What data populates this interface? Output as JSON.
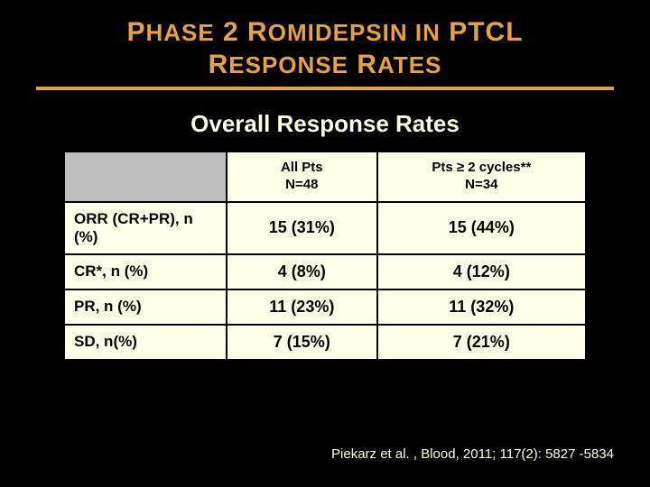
{
  "title": {
    "line1_html": "P<span class='sc'>HASE</span> 2 R<span class='sc'>OMIDEPSIN IN</span> PTCL",
    "line2_html": "R<span class='sc'>ESPONSE</span> R<span class='sc'>ATES</span>",
    "color": "#e8a23d",
    "rule_color": "#e8a23d"
  },
  "subtitle": "Overall Response Rates",
  "table": {
    "header_bg": "#bfbfbf",
    "cell_bg": "#ffffe8",
    "border_color": "#000000",
    "columns": [
      {
        "label_line1": "All Pts",
        "label_line2": "N=48"
      },
      {
        "label_line1": "Pts ≥ 2 cycles**",
        "label_line2": "N=34"
      }
    ],
    "rows": [
      {
        "label": "ORR (CR+PR), n (%)",
        "c1": "15 (31%)",
        "c2": "15 (44%)"
      },
      {
        "label": "CR*, n (%)",
        "c1": "4 (8%)",
        "c2": "4 (12%)"
      },
      {
        "label": "PR, n (%)",
        "c1": "11 (23%)",
        "c2": "11 (32%)"
      },
      {
        "label": "SD, n(%)",
        "c1": "7 (15%)",
        "c2": "7 (21%)"
      }
    ]
  },
  "citation": "Piekarz et al. , Blood, 2011; 117(2): 5827 -5834"
}
